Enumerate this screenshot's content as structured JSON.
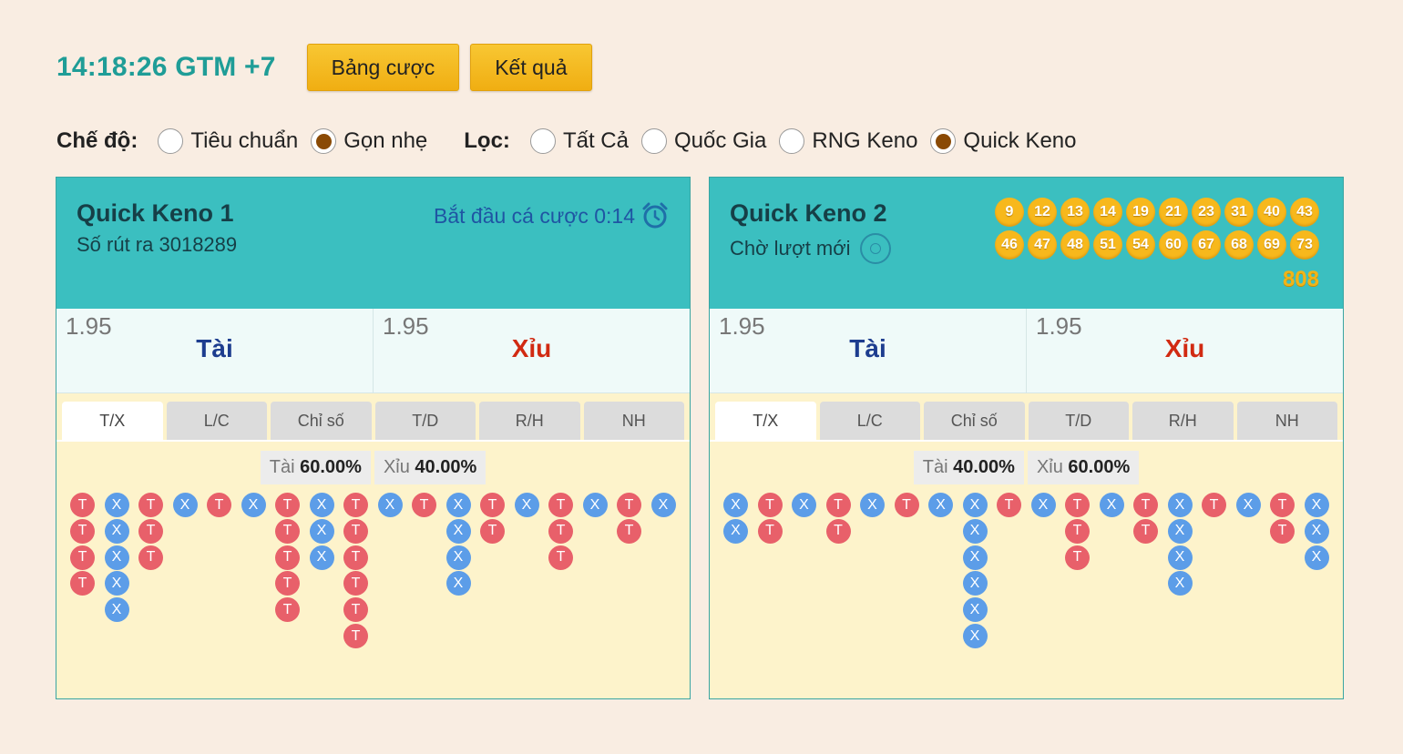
{
  "header": {
    "clock": "14:18:26 GTM +7",
    "buttons": [
      "Bảng cược",
      "Kết quả"
    ]
  },
  "filters": {
    "mode_label": "Chế độ:",
    "modes": [
      {
        "label": "Tiêu chuẩn",
        "selected": false
      },
      {
        "label": "Gọn nhẹ",
        "selected": true
      }
    ],
    "filter_label": "Lọc:",
    "filter_options": [
      {
        "label": "Tất Cả",
        "selected": false
      },
      {
        "label": "Quốc Gia",
        "selected": false
      },
      {
        "label": "RNG Keno",
        "selected": false
      },
      {
        "label": "Quick Keno",
        "selected": true
      }
    ]
  },
  "panels": [
    {
      "name": "Quick Keno 1",
      "subtitle": "Số rút ra 3018289",
      "status": "Bắt đầu cá cược 0:14",
      "status_icon": "alarm-clock-icon",
      "balls": [],
      "ball_sum": "",
      "odds": [
        {
          "value": "1.95",
          "label": "Tài",
          "kind": "tai"
        },
        {
          "value": "1.95",
          "label": "Xỉu",
          "kind": "xiu"
        }
      ],
      "tabs": [
        {
          "label": "T/X",
          "active": true
        },
        {
          "label": "L/C",
          "active": false
        },
        {
          "label": "Chỉ số",
          "active": false
        },
        {
          "label": "T/D",
          "active": false
        },
        {
          "label": "R/H",
          "active": false
        },
        {
          "label": "NH",
          "active": false
        }
      ],
      "stats": [
        {
          "label": "Tài",
          "value": "60.00%"
        },
        {
          "label": "Xỉu",
          "value": "40.00%"
        }
      ],
      "bead_road": [
        [
          "T",
          "T",
          "T",
          "T"
        ],
        [
          "X",
          "X",
          "X",
          "X",
          "X"
        ],
        [
          "T",
          "T",
          "T"
        ],
        [
          "X"
        ],
        [
          "T"
        ],
        [
          "X"
        ],
        [
          "T",
          "T",
          "T",
          "T",
          "T"
        ],
        [
          "X",
          "X",
          "X"
        ],
        [
          "T",
          "T",
          "T",
          "T",
          "T",
          "T"
        ],
        [
          "X"
        ],
        [
          "T"
        ],
        [
          "X",
          "X",
          "X",
          "X"
        ],
        [
          "T",
          "T"
        ],
        [
          "X"
        ],
        [
          "T",
          "T",
          "T"
        ],
        [
          "X"
        ],
        [
          "T",
          "T"
        ],
        [
          "X"
        ]
      ]
    },
    {
      "name": "Quick Keno 2",
      "subtitle": "Chờ lượt mới",
      "status": "",
      "status_icon": "",
      "balls": [
        "9",
        "12",
        "13",
        "14",
        "19",
        "21",
        "23",
        "31",
        "40",
        "43",
        "46",
        "47",
        "48",
        "51",
        "54",
        "60",
        "67",
        "68",
        "69",
        "73"
      ],
      "ball_sum": "808",
      "odds": [
        {
          "value": "1.95",
          "label": "Tài",
          "kind": "tai"
        },
        {
          "value": "1.95",
          "label": "Xỉu",
          "kind": "xiu"
        }
      ],
      "tabs": [
        {
          "label": "T/X",
          "active": true
        },
        {
          "label": "L/C",
          "active": false
        },
        {
          "label": "Chỉ số",
          "active": false
        },
        {
          "label": "T/D",
          "active": false
        },
        {
          "label": "R/H",
          "active": false
        },
        {
          "label": "NH",
          "active": false
        }
      ],
      "stats": [
        {
          "label": "Tài",
          "value": "40.00%"
        },
        {
          "label": "Xỉu",
          "value": "60.00%"
        }
      ],
      "bead_road": [
        [
          "X",
          "X"
        ],
        [
          "T",
          "T"
        ],
        [
          "X"
        ],
        [
          "T",
          "T"
        ],
        [
          "X"
        ],
        [
          "T"
        ],
        [
          "X"
        ],
        [
          "X",
          "X",
          "X",
          "X",
          "X",
          "X"
        ],
        [
          "T"
        ],
        [
          "X"
        ],
        [
          "T",
          "T",
          "T"
        ],
        [
          "X"
        ],
        [
          "T",
          "T"
        ],
        [
          "X",
          "X",
          "X",
          "X"
        ],
        [
          "T"
        ],
        [
          "X"
        ],
        [
          "T",
          "T"
        ],
        [
          "X",
          "X",
          "X"
        ]
      ]
    }
  ]
}
